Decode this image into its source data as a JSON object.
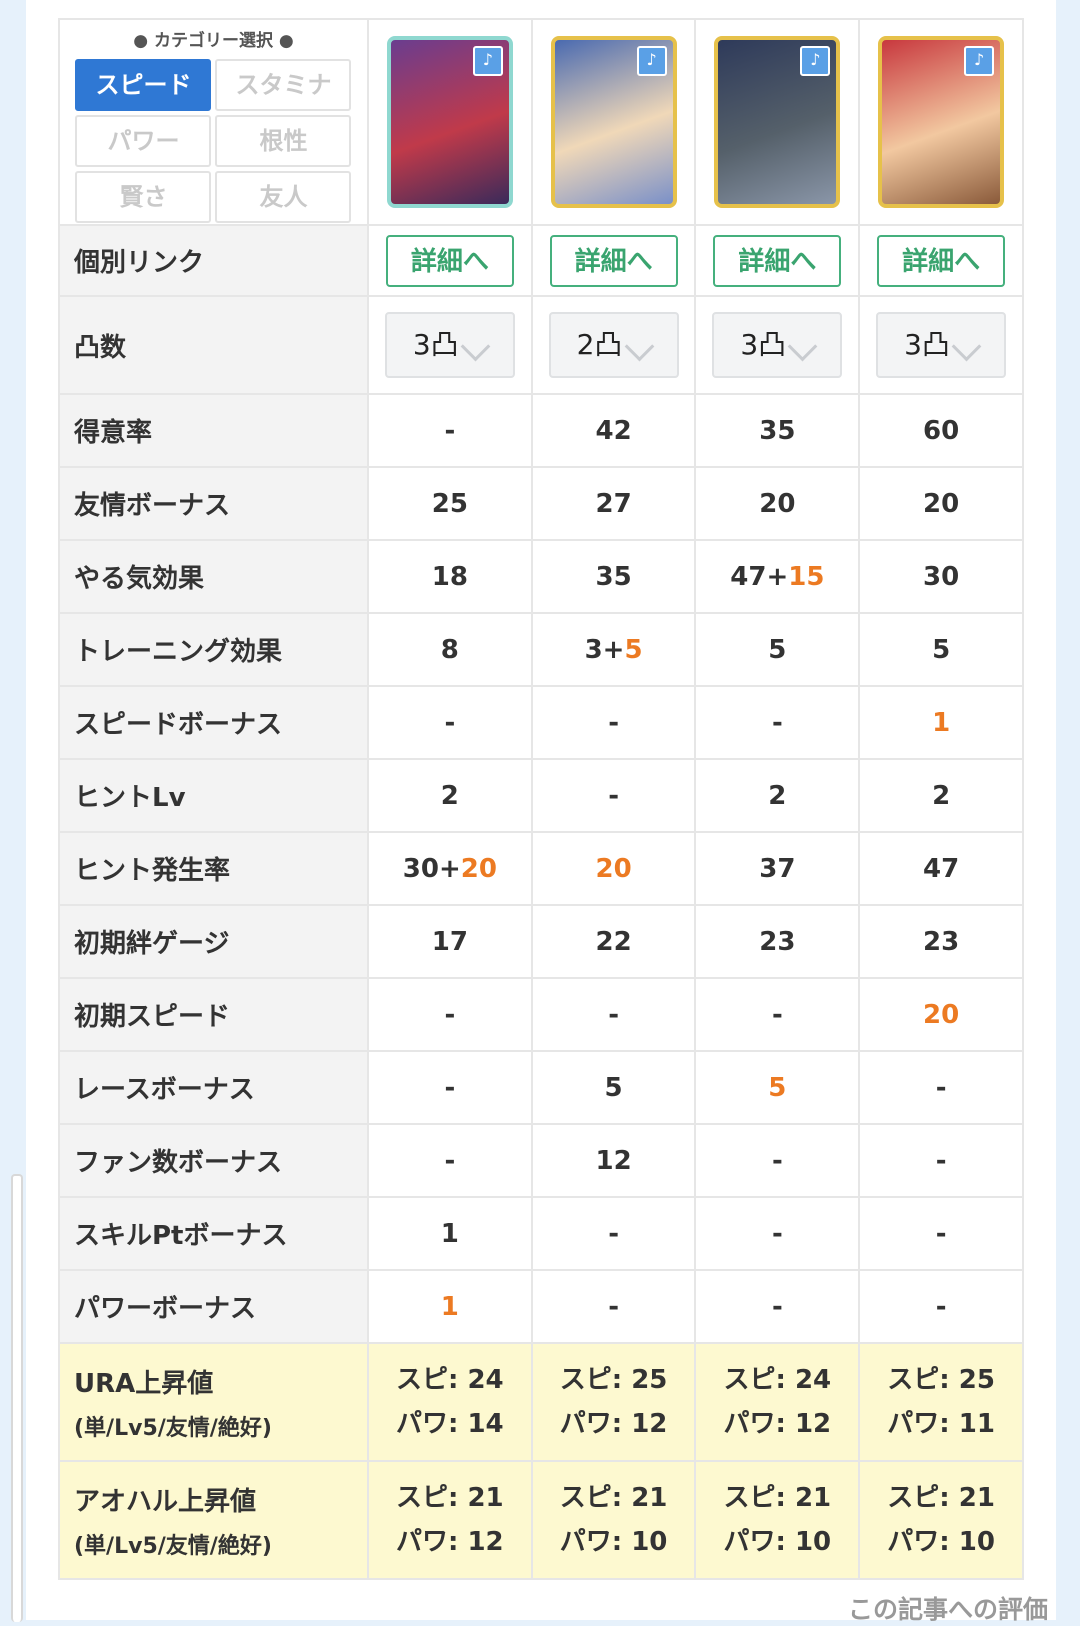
{
  "category": {
    "heading": "● カテゴリー選択 ●",
    "options": [
      "スピード",
      "スタミナ",
      "パワー",
      "根性",
      "賢さ",
      "友人"
    ],
    "selected": "スピード"
  },
  "cards": [
    {
      "name": "card-1",
      "frame": "#8fd8d0",
      "colors": [
        "#6a3d8f",
        "#c03a4a",
        "#3a2a5a"
      ]
    },
    {
      "name": "card-2",
      "frame": "#e6c14a",
      "colors": [
        "#4a6ab0",
        "#f0d8b8",
        "#7a90c8"
      ]
    },
    {
      "name": "card-3",
      "frame": "#e6c14a",
      "colors": [
        "#2e3a5a",
        "#55606a",
        "#8a96a8"
      ]
    },
    {
      "name": "card-4",
      "frame": "#e6c14a",
      "colors": [
        "#c8383e",
        "#f2c8a0",
        "#8a5a3a"
      ]
    }
  ],
  "detail_label": "個別リンク",
  "detail_button": "詳細へ",
  "limit_break": {
    "label": "凸数",
    "values": [
      "3凸",
      "2凸",
      "3凸",
      "3凸"
    ]
  },
  "stats": [
    {
      "label": "得意率",
      "values": [
        [
          "-"
        ],
        [
          "42"
        ],
        [
          "35"
        ],
        [
          "60"
        ]
      ]
    },
    {
      "label": "友情ボーナス",
      "values": [
        [
          "25"
        ],
        [
          "27"
        ],
        [
          "20"
        ],
        [
          "20"
        ]
      ]
    },
    {
      "label": "やる気効果",
      "values": [
        [
          "18"
        ],
        [
          "35"
        ],
        [
          "47+",
          "15"
        ],
        [
          "30"
        ]
      ]
    },
    {
      "label": "トレーニング効果",
      "values": [
        [
          "8"
        ],
        [
          "3+",
          "5"
        ],
        [
          "5"
        ],
        [
          "5"
        ]
      ]
    },
    {
      "label": "スピードボーナス",
      "values": [
        [
          "-"
        ],
        [
          "-"
        ],
        [
          "-"
        ],
        [
          "",
          "1"
        ]
      ]
    },
    {
      "label": "ヒントLv",
      "values": [
        [
          "2"
        ],
        [
          "-"
        ],
        [
          "2"
        ],
        [
          "2"
        ]
      ]
    },
    {
      "label": "ヒント発生率",
      "values": [
        [
          "30+",
          "20"
        ],
        [
          "",
          "20"
        ],
        [
          "37"
        ],
        [
          "47"
        ]
      ]
    },
    {
      "label": "初期絆ゲージ",
      "values": [
        [
          "17"
        ],
        [
          "22"
        ],
        [
          "23"
        ],
        [
          "23"
        ]
      ]
    },
    {
      "label": "初期スピード",
      "values": [
        [
          "-"
        ],
        [
          "-"
        ],
        [
          "-"
        ],
        [
          "",
          "20"
        ]
      ]
    },
    {
      "label": "レースボーナス",
      "values": [
        [
          "-"
        ],
        [
          "5"
        ],
        [
          "",
          "5"
        ],
        [
          "-"
        ]
      ]
    },
    {
      "label": "ファン数ボーナス",
      "values": [
        [
          "-"
        ],
        [
          "12"
        ],
        [
          "-"
        ],
        [
          "-"
        ]
      ]
    },
    {
      "label": "スキルPtボーナス",
      "values": [
        [
          "1"
        ],
        [
          "-"
        ],
        [
          "-"
        ],
        [
          "-"
        ]
      ]
    },
    {
      "label": "パワーボーナス",
      "values": [
        [
          "",
          "1"
        ],
        [
          "-"
        ],
        [
          "-"
        ],
        [
          "-"
        ]
      ]
    }
  ],
  "ura": {
    "label1": "URA上昇値",
    "label2": "(単/Lv5/友情/絶好)",
    "values": [
      [
        "スピ: 24",
        "パワ: 14"
      ],
      [
        "スピ: 25",
        "パワ: 12"
      ],
      [
        "スピ: 24",
        "パワ: 12"
      ],
      [
        "スピ: 25",
        "パワ: 11"
      ]
    ]
  },
  "aoharu": {
    "label1": "アオハル上昇値",
    "label2": "(単/Lv5/友情/絶好)",
    "values": [
      [
        "スピ: 21",
        "パワ: 12"
      ],
      [
        "スピ: 21",
        "パワ: 10"
      ],
      [
        "スピ: 21",
        "パワ: 10"
      ],
      [
        "スピ: 21",
        "パワ: 10"
      ]
    ]
  },
  "footer": "この記事への評価",
  "colors": {
    "accent": "#2f78d4",
    "highlight": "#ec7a22",
    "link": "#45b07d",
    "red_label": "#e03a3a"
  }
}
